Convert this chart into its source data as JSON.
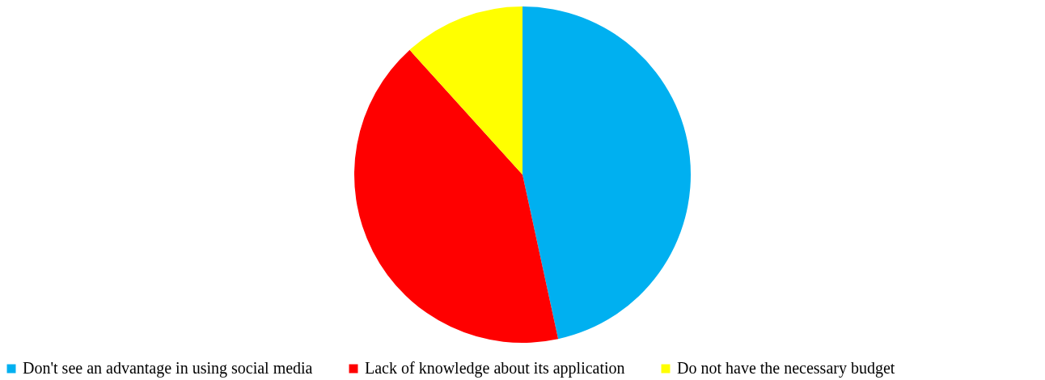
{
  "chart_data": {
    "type": "pie",
    "categories": [
      "Don't see an advantage in using social media",
      "Lack of knowledge about its application",
      "Do not have the necessary budget"
    ],
    "values": [
      46.6,
      41.7,
      11.7
    ],
    "colors": [
      "#00b0f0",
      "#ff0000",
      "#ffff00"
    ],
    "legend": "bottom"
  }
}
